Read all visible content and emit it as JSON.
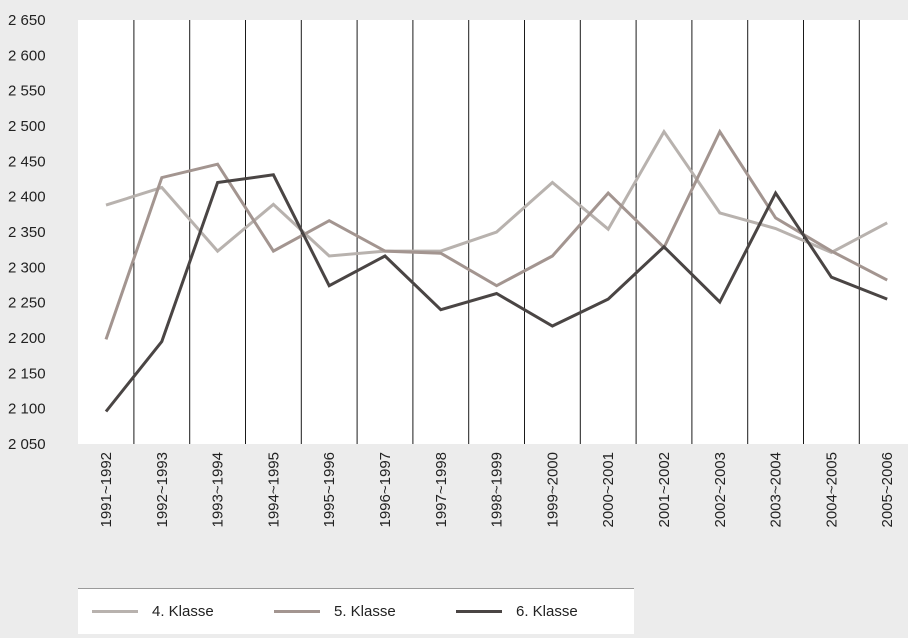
{
  "chart_data": {
    "type": "line",
    "categories": [
      "1991~1992",
      "1992~1993",
      "1993~1994",
      "1994~1995",
      "1995~1996",
      "1996~1997",
      "1997~1998",
      "1998~1999",
      "1999~2000",
      "2000~2001",
      "2001~2002",
      "2002~2003",
      "2003~2004",
      "2004~2005",
      "2005~2006"
    ],
    "series": [
      {
        "name": "4. Klasse",
        "color": "#b8b2ae",
        "values": [
          2388,
          2413,
          2323,
          2389,
          2316,
          2323,
          2323,
          2350,
          2420,
          2354,
          2492,
          2377,
          2355,
          2321,
          2363
        ]
      },
      {
        "name": "5. Klasse",
        "color": "#a39590",
        "values": [
          2198,
          2427,
          2446,
          2323,
          2366,
          2323,
          2320,
          2274,
          2316,
          2405,
          2328,
          2492,
          2370,
          2323,
          2282
        ]
      },
      {
        "name": "6. Klasse",
        "color": "#4a4544",
        "values": [
          2096,
          2195,
          2420,
          2431,
          2274,
          2316,
          2240,
          2263,
          2217,
          2255,
          2329,
          2251,
          2405,
          2286,
          2255
        ]
      }
    ],
    "y_ticks": [
      "2 050",
      "2 100",
      "2 150",
      "2 200",
      "2 250",
      "2 300",
      "2 350",
      "2 400",
      "2 450",
      "2 500",
      "2 550",
      "2 600",
      "2 650"
    ],
    "ylim": [
      2050,
      2650
    ],
    "grid": "vertical",
    "legend_position": "bottom"
  }
}
